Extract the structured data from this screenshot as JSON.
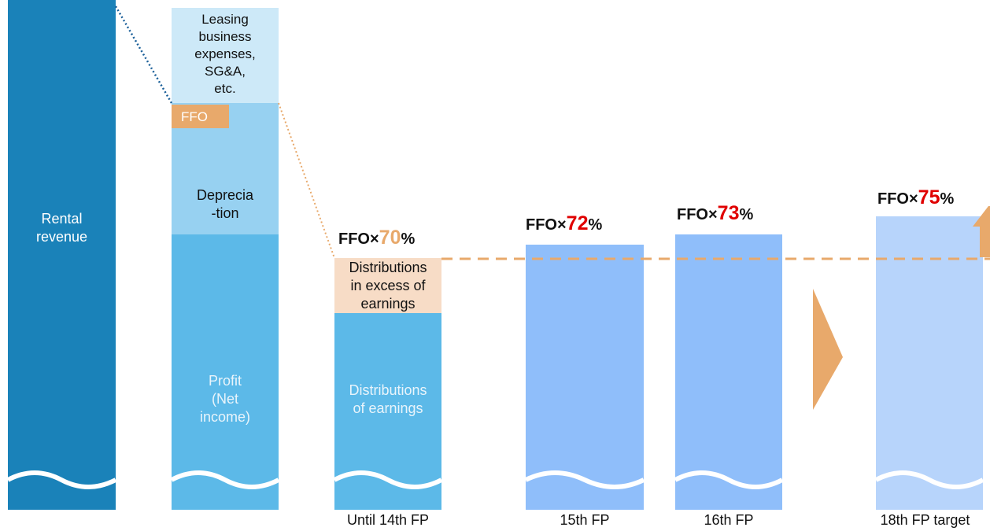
{
  "colors": {
    "rental_revenue": "#1a82b9",
    "expenses": "#cde9f8",
    "depreciation": "#97d1f1",
    "profit": "#5cb9e8",
    "ffo_tag": "#e8a96b",
    "excess": "#f7dcc6",
    "period_15": "#8fbefa",
    "period_16": "#8fbefa",
    "period_18": "#b7d4fb",
    "dash_line": "#e8a96b",
    "arrow": "#e8a96b",
    "pct_orange": "#e8a96b",
    "pct_red": "#e00000"
  },
  "revenue": {
    "label": "Rental\nrevenue"
  },
  "breakdown": {
    "expenses_label": "Leasing\nbusiness\nexpenses,\nSG&A,\netc.",
    "ffo_label": "FFO",
    "depreciation_label": "Deprecia\n-tion",
    "profit_label": "Profit\n(Net\nincome)"
  },
  "periods": [
    {
      "prefix": "FFO×",
      "pct": "70",
      "suffix": "%",
      "pct_color": "orange",
      "x_label": "Until 14th FP",
      "excess_label": "Distributions\nin excess of\nearnings",
      "earnings_label": "Distributions\nof earnings"
    },
    {
      "prefix": "FFO×",
      "pct": "72",
      "suffix": "%",
      "pct_color": "red",
      "x_label": "15th FP"
    },
    {
      "prefix": "FFO×",
      "pct": "73",
      "suffix": "%",
      "pct_color": "red",
      "x_label": "16th FP"
    },
    {
      "prefix": "FFO×",
      "pct": "75",
      "suffix": "%",
      "pct_color": "red",
      "x_label": "18th FP target"
    }
  ]
}
